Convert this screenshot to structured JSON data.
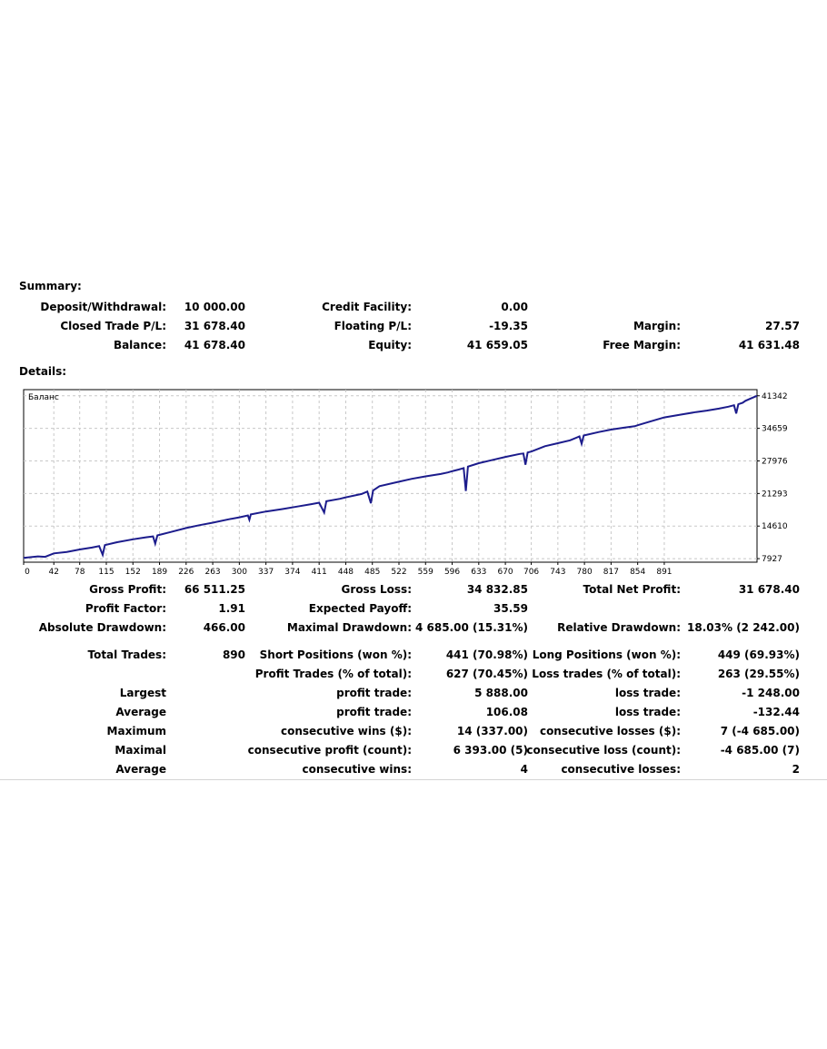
{
  "summary": {
    "heading": "Summary:",
    "rows": [
      {
        "c1": {
          "label": "Deposit/Withdrawal:",
          "value": "10 000.00"
        },
        "c2": {
          "label": "Credit Facility:",
          "value": "0.00"
        },
        "c3": {
          "label": "",
          "value": ""
        }
      },
      {
        "c1": {
          "label": "Closed Trade P/L:",
          "value": "31 678.40"
        },
        "c2": {
          "label": "Floating P/L:",
          "value": "-19.35"
        },
        "c3": {
          "label": "Margin:",
          "value": "27.57"
        }
      },
      {
        "c1": {
          "label": "Balance:",
          "value": "41 678.40"
        },
        "c2": {
          "label": "Equity:",
          "value": "41 659.05"
        },
        "c3": {
          "label": "Free Margin:",
          "value": "41 631.48"
        }
      }
    ]
  },
  "details": {
    "heading": "Details:",
    "rows": [
      {
        "c1": {
          "label": "Gross Profit:",
          "value": "66 511.25"
        },
        "c2": {
          "label": "Gross Loss:",
          "value": "34 832.85"
        },
        "c3": {
          "label": "Total Net Profit:",
          "value": "31 678.40"
        }
      },
      {
        "c1": {
          "label": "Profit Factor:",
          "value": "1.91"
        },
        "c2": {
          "label": "Expected Payoff:",
          "value": "35.59"
        },
        "c3": {
          "label": "",
          "value": ""
        }
      },
      {
        "c1": {
          "label": "Absolute Drawdown:",
          "value": "466.00"
        },
        "c2": {
          "label": "Maximal Drawdown:",
          "value": "4 685.00 (15.31%)"
        },
        "c3": {
          "label": "Relative Drawdown:",
          "value": "18.03% (2 242.00)"
        }
      },
      {
        "c1": {
          "label": "Total Trades:",
          "value": "890"
        },
        "c2": {
          "label": "Short Positions (won %):",
          "value": "441 (70.98%)"
        },
        "c3": {
          "label": "Long Positions (won %):",
          "value": "449 (69.93%)"
        }
      },
      {
        "c1": {
          "label": "",
          "value": ""
        },
        "c2": {
          "label": "Profit Trades (% of total):",
          "value": "627 (70.45%)"
        },
        "c3": {
          "label": "Loss trades (% of total):",
          "value": "263 (29.55%)"
        }
      },
      {
        "c1": {
          "label": "Largest",
          "value": ""
        },
        "c2": {
          "label": "profit trade:",
          "value": "5 888.00"
        },
        "c3": {
          "label": "loss trade:",
          "value": "-1 248.00"
        }
      },
      {
        "c1": {
          "label": "Average",
          "value": ""
        },
        "c2": {
          "label": "profit trade:",
          "value": "106.08"
        },
        "c3": {
          "label": "loss trade:",
          "value": "-132.44"
        }
      },
      {
        "c1": {
          "label": "Maximum",
          "value": ""
        },
        "c2": {
          "label": "consecutive wins ($):",
          "value": "14 (337.00)"
        },
        "c3": {
          "label": "consecutive losses ($):",
          "value": "7 (-4 685.00)"
        }
      },
      {
        "c1": {
          "label": "Maximal",
          "value": ""
        },
        "c2": {
          "label": "consecutive profit (count):",
          "value": "6 393.00 (5)"
        },
        "c3": {
          "label": "consecutive loss (count):",
          "value": "-4 685.00 (7)"
        }
      },
      {
        "c1": {
          "label": "Average",
          "value": ""
        },
        "c2": {
          "label": "consecutive wins:",
          "value": "4"
        },
        "c3": {
          "label": "consecutive losses:",
          "value": "2"
        }
      }
    ]
  },
  "chart_data": {
    "type": "line",
    "title": "Баланс",
    "series": [
      {
        "name": "Баланс",
        "color": "#1c1c8c",
        "points": [
          [
            0,
            8100
          ],
          [
            20,
            8400
          ],
          [
            30,
            8300
          ],
          [
            42,
            9000
          ],
          [
            60,
            9300
          ],
          [
            78,
            9800
          ],
          [
            95,
            10200
          ],
          [
            105,
            10500
          ],
          [
            110,
            8700
          ],
          [
            113,
            10700
          ],
          [
            130,
            11300
          ],
          [
            152,
            11900
          ],
          [
            170,
            12300
          ],
          [
            180,
            12500
          ],
          [
            183,
            11000
          ],
          [
            186,
            12700
          ],
          [
            205,
            13400
          ],
          [
            226,
            14200
          ],
          [
            245,
            14800
          ],
          [
            263,
            15300
          ],
          [
            285,
            16000
          ],
          [
            300,
            16400
          ],
          [
            312,
            16800
          ],
          [
            314,
            15900
          ],
          [
            316,
            17000
          ],
          [
            337,
            17600
          ],
          [
            360,
            18100
          ],
          [
            380,
            18600
          ],
          [
            400,
            19100
          ],
          [
            411,
            19400
          ],
          [
            418,
            17400
          ],
          [
            421,
            19700
          ],
          [
            440,
            20200
          ],
          [
            448,
            20500
          ],
          [
            470,
            21200
          ],
          [
            478,
            21700
          ],
          [
            483,
            19300
          ],
          [
            486,
            21900
          ],
          [
            495,
            22800
          ],
          [
            522,
            23700
          ],
          [
            540,
            24300
          ],
          [
            559,
            24800
          ],
          [
            580,
            25300
          ],
          [
            590,
            25600
          ],
          [
            597,
            25900
          ],
          [
            605,
            26200
          ],
          [
            612,
            26500
          ],
          [
            615,
            21800
          ],
          [
            618,
            26800
          ],
          [
            633,
            27500
          ],
          [
            650,
            28100
          ],
          [
            670,
            28800
          ],
          [
            690,
            29400
          ],
          [
            695,
            29500
          ],
          [
            698,
            27200
          ],
          [
            701,
            29700
          ],
          [
            706,
            29900
          ],
          [
            725,
            31000
          ],
          [
            743,
            31600
          ],
          [
            760,
            32200
          ],
          [
            773,
            33000
          ],
          [
            776,
            31500
          ],
          [
            779,
            33200
          ],
          [
            800,
            33900
          ],
          [
            817,
            34400
          ],
          [
            835,
            34800
          ],
          [
            850,
            35100
          ],
          [
            854,
            35300
          ],
          [
            870,
            36000
          ],
          [
            891,
            36900
          ],
          [
            915,
            37500
          ],
          [
            935,
            38000
          ],
          [
            950,
            38300
          ],
          [
            967,
            38700
          ],
          [
            980,
            39100
          ],
          [
            988,
            39400
          ],
          [
            991,
            37700
          ],
          [
            994,
            39600
          ],
          [
            1000,
            39900
          ],
          [
            1004,
            40300
          ],
          [
            1010,
            40700
          ],
          [
            1020,
            41342
          ]
        ]
      }
    ],
    "x_ticks": [
      0,
      42,
      78,
      115,
      152,
      189,
      226,
      263,
      300,
      337,
      374,
      411,
      448,
      485,
      522,
      559,
      596,
      633,
      670,
      706,
      743,
      780,
      817,
      854,
      891
    ],
    "y_ticks": [
      7927,
      14610,
      21293,
      27976,
      34659,
      41342
    ],
    "xlim": [
      0,
      1020
    ],
    "ylim": [
      7200,
      42600
    ],
    "grid": true
  }
}
